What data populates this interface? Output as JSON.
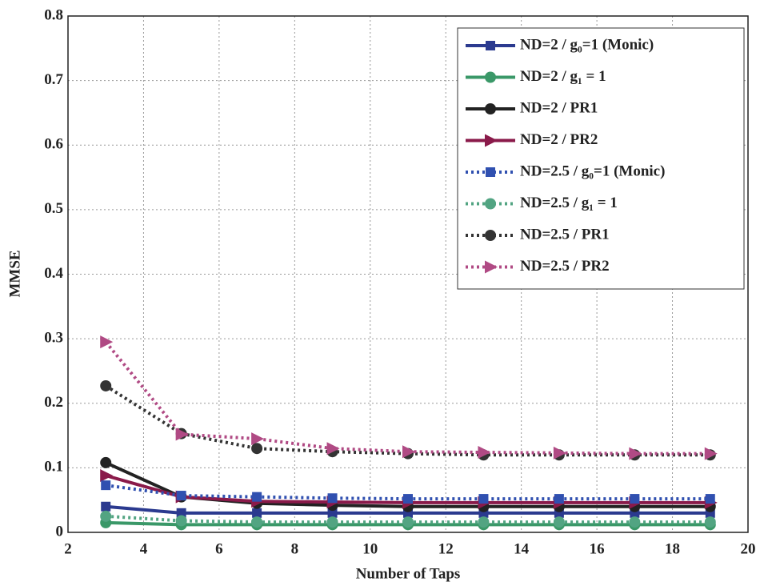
{
  "chart_data": {
    "type": "line",
    "x_label": "Number of Taps",
    "y_label": "MMSE",
    "x": [
      3,
      5,
      7,
      9,
      11,
      13,
      15,
      17,
      19
    ],
    "xlim": [
      2,
      20
    ],
    "xticks": [
      2,
      4,
      6,
      8,
      10,
      12,
      14,
      16,
      18,
      20
    ],
    "ylim": [
      0,
      0.8
    ],
    "yticks": [
      0,
      0.1,
      0.2,
      0.3,
      0.4,
      0.5,
      0.6,
      0.7,
      0.8
    ],
    "grid": true,
    "legend": "upper right",
    "series": [
      {
        "name": "ND=2 / g₀=1 (Monic)",
        "color": "#2b3a8f",
        "linestyle": "solid",
        "marker": "square",
        "values": [
          0.04,
          0.03,
          0.03,
          0.03,
          0.03,
          0.03,
          0.03,
          0.03,
          0.03
        ]
      },
      {
        "name": "ND=2 / g₁ = 1",
        "color": "#3a9868",
        "linestyle": "solid",
        "marker": "circle",
        "values": [
          0.015,
          0.012,
          0.012,
          0.012,
          0.012,
          0.012,
          0.012,
          0.012,
          0.012
        ]
      },
      {
        "name": "ND=2 / PR1",
        "color": "#222222",
        "linestyle": "solid",
        "marker": "circle",
        "values": [
          0.108,
          0.055,
          0.045,
          0.042,
          0.04,
          0.04,
          0.04,
          0.04,
          0.04
        ]
      },
      {
        "name": "ND=2 / PR2",
        "color": "#8a1a4a",
        "linestyle": "solid",
        "marker": "triangle",
        "values": [
          0.088,
          0.055,
          0.048,
          0.047,
          0.046,
          0.046,
          0.046,
          0.046,
          0.046
        ]
      },
      {
        "name": "ND=2.5 / g₀=1 (Monic)",
        "color": "#3050b0",
        "linestyle": "dotted",
        "marker": "square",
        "values": [
          0.073,
          0.057,
          0.055,
          0.053,
          0.052,
          0.052,
          0.052,
          0.052,
          0.052
        ]
      },
      {
        "name": "ND=2.5 / g₁ = 1",
        "color": "#52a482",
        "linestyle": "dotted",
        "marker": "circle",
        "values": [
          0.025,
          0.018,
          0.016,
          0.016,
          0.016,
          0.016,
          0.016,
          0.016,
          0.016
        ]
      },
      {
        "name": "ND=2.5 / PR1",
        "color": "#333333",
        "linestyle": "dotted",
        "marker": "circle",
        "values": [
          0.227,
          0.153,
          0.13,
          0.125,
          0.122,
          0.12,
          0.12,
          0.12,
          0.12
        ]
      },
      {
        "name": "ND=2.5 / PR2",
        "color": "#b04a84",
        "linestyle": "dotted",
        "marker": "triangle",
        "values": [
          0.295,
          0.152,
          0.145,
          0.13,
          0.125,
          0.124,
          0.123,
          0.122,
          0.122
        ]
      }
    ]
  }
}
